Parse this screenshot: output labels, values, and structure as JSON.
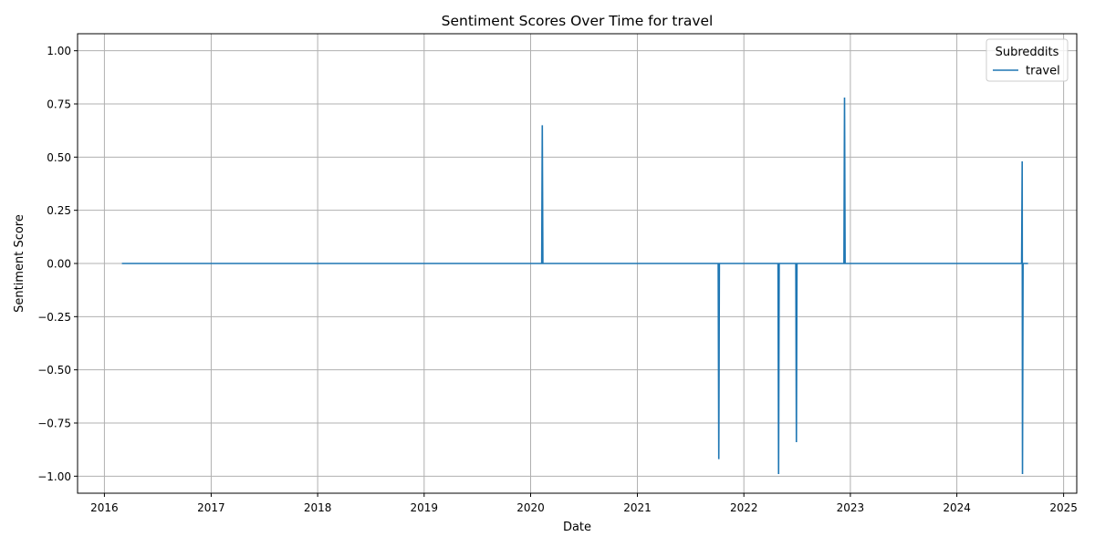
{
  "chart_data": {
    "type": "line",
    "title": "Sentiment Scores Over Time for travel",
    "xlabel": "Date",
    "ylabel": "Sentiment Score",
    "xlim": [
      "2015-10-01",
      "2025-02-15"
    ],
    "ylim": [
      -1.08,
      1.08
    ],
    "x_ticks": [
      "2016",
      "2017",
      "2018",
      "2019",
      "2020",
      "2021",
      "2022",
      "2023",
      "2024",
      "2025"
    ],
    "y_ticks": [
      "1.00",
      "0.75",
      "0.50",
      "0.25",
      "0.00",
      "−0.25",
      "−0.50",
      "−0.75",
      "−1.00"
    ],
    "y_tick_values": [
      1.0,
      0.75,
      0.5,
      0.25,
      0.0,
      -0.25,
      -0.5,
      -0.75,
      -1.0
    ],
    "grid": true,
    "legend": {
      "title": "Subreddits",
      "position": "top-right"
    },
    "series": [
      {
        "name": "travel",
        "color": "#1f77b4",
        "points": [
          [
            "2016-03-01",
            0
          ],
          [
            "2016-11-01",
            0
          ],
          [
            "2017-02-10",
            0
          ],
          [
            "2017-03-01",
            0
          ],
          [
            "2017-04-01",
            0
          ],
          [
            "2017-05-15",
            0
          ],
          [
            "2017-06-15",
            0
          ],
          [
            "2017-07-01",
            0
          ],
          [
            "2017-07-20",
            0
          ],
          [
            "2017-08-15",
            0
          ],
          [
            "2017-09-10",
            0
          ],
          [
            "2017-10-10",
            0
          ],
          [
            "2017-11-05",
            0
          ],
          [
            "2017-12-01",
            0
          ],
          [
            "2018-01-01",
            0
          ],
          [
            "2018-03-01",
            0
          ],
          [
            "2018-05-01",
            0
          ],
          [
            "2018-07-01",
            0
          ],
          [
            "2018-09-01",
            0
          ],
          [
            "2018-11-01",
            0
          ],
          [
            "2019-01-01",
            0
          ],
          [
            "2019-03-01",
            0
          ],
          [
            "2019-05-01",
            0
          ],
          [
            "2019-07-01",
            0
          ],
          [
            "2019-09-01",
            0
          ],
          [
            "2019-11-15",
            0
          ],
          [
            "2020-01-01",
            0
          ],
          [
            "2020-02-08",
            0
          ],
          [
            "2020-02-10",
            0.65
          ],
          [
            "2020-02-12",
            0
          ],
          [
            "2020-03-15",
            0
          ],
          [
            "2020-05-01",
            0
          ],
          [
            "2020-07-01",
            0
          ],
          [
            "2020-09-01",
            0
          ],
          [
            "2020-11-01",
            0
          ],
          [
            "2021-01-01",
            0
          ],
          [
            "2021-02-15",
            0
          ],
          [
            "2021-04-01",
            0
          ],
          [
            "2021-05-15",
            0
          ],
          [
            "2021-07-01",
            0
          ],
          [
            "2021-08-20",
            0
          ],
          [
            "2021-10-05",
            0
          ],
          [
            "2021-10-07",
            -0.92
          ],
          [
            "2021-10-09",
            0
          ],
          [
            "2022-01-15",
            0
          ],
          [
            "2022-02-15",
            0
          ],
          [
            "2022-04-28",
            0
          ],
          [
            "2022-04-30",
            -0.99
          ],
          [
            "2022-05-02",
            0
          ],
          [
            "2022-05-25",
            0
          ],
          [
            "2022-06-28",
            0
          ],
          [
            "2022-06-30",
            -0.84
          ],
          [
            "2022-07-02",
            0
          ],
          [
            "2022-12-10",
            0
          ],
          [
            "2022-12-12",
            0.78
          ],
          [
            "2022-12-14",
            0
          ],
          [
            "2023-01-01",
            0
          ],
          [
            "2023-02-01",
            0
          ],
          [
            "2023-03-15",
            0
          ],
          [
            "2024-05-25",
            0
          ],
          [
            "2024-08-10",
            0
          ],
          [
            "2024-08-12",
            0.48
          ],
          [
            "2024-08-13",
            -0.99
          ],
          [
            "2024-08-15",
            0
          ],
          [
            "2024-09-01",
            0
          ]
        ]
      }
    ]
  }
}
